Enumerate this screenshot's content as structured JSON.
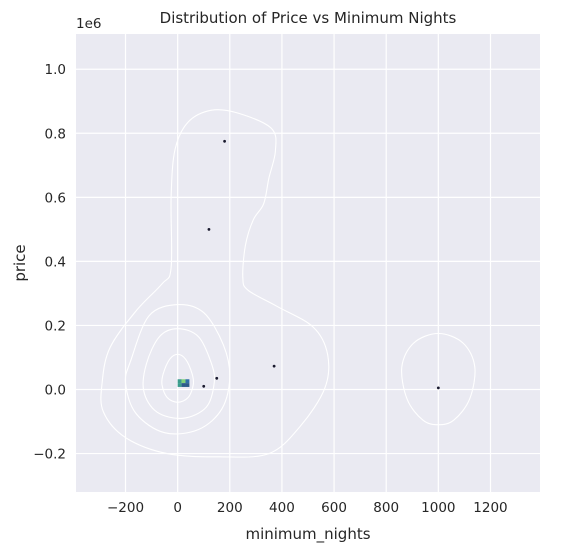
{
  "chart_data": {
    "type": "scatter",
    "title": "Distribution of Price vs Minimum Nights",
    "xlabel": "minimum_nights",
    "ylabel": "price",
    "y_offset_label": "1e6",
    "xlim": [
      -390,
      1390
    ],
    "ylim": [
      -320000,
      1110000
    ],
    "xticks": [
      -200,
      0,
      200,
      400,
      600,
      800,
      1000,
      1200
    ],
    "xtick_labels": [
      "−200",
      "0",
      "200",
      "400",
      "600",
      "800",
      "1000",
      "1200"
    ],
    "yticks": [
      -200000,
      0,
      200000,
      400000,
      600000,
      800000,
      1000000
    ],
    "ytick_labels": [
      "−0.2",
      "0.0",
      "0.2",
      "0.4",
      "0.6",
      "0.8",
      "1.0"
    ],
    "grid": true,
    "colors": {
      "background": "#eaeaf2",
      "grid": "#ffffff",
      "points": "#1a1a2e",
      "contour": "#ffffff",
      "hist_dark": "#2b5c8a",
      "hist_teal": "#3a9c8c",
      "hist_green": "#7fd17a",
      "hist_blue": "#2f6fa8"
    },
    "points": [
      {
        "x": 180,
        "y": 775000
      },
      {
        "x": 120,
        "y": 500000
      },
      {
        "x": 370,
        "y": 73000
      },
      {
        "x": 150,
        "y": 35000
      },
      {
        "x": 100,
        "y": 10000
      },
      {
        "x": 1000,
        "y": 5000
      }
    ],
    "hist2d_bins": [
      {
        "x0": 0,
        "x1": 15,
        "y0": 20000,
        "y1": 32000,
        "level": "teal"
      },
      {
        "x0": 15,
        "x1": 30,
        "y0": 20000,
        "y1": 32000,
        "level": "green"
      },
      {
        "x0": 0,
        "x1": 15,
        "y0": 8000,
        "y1": 20000,
        "level": "teal"
      },
      {
        "x0": 15,
        "x1": 30,
        "y0": 8000,
        "y1": 20000,
        "level": "dark"
      },
      {
        "x0": 30,
        "x1": 45,
        "y0": 20000,
        "y1": 32000,
        "level": "blue"
      },
      {
        "x0": 30,
        "x1": 45,
        "y0": 8000,
        "y1": 20000,
        "level": "dark"
      }
    ],
    "kde_contours": [
      {
        "group": "main",
        "points": [
          [
            -55,
            50000
          ],
          [
            -30,
            95000
          ],
          [
            0,
            110000
          ],
          [
            30,
            95000
          ],
          [
            55,
            50000
          ],
          [
            60,
            15000
          ],
          [
            40,
            -25000
          ],
          [
            0,
            -40000
          ],
          [
            -40,
            -25000
          ],
          [
            -60,
            15000
          ]
        ]
      },
      {
        "group": "main",
        "points": [
          [
            -120,
            80000
          ],
          [
            -70,
            165000
          ],
          [
            0,
            190000
          ],
          [
            80,
            165000
          ],
          [
            130,
            80000
          ],
          [
            140,
            20000
          ],
          [
            110,
            -55000
          ],
          [
            20,
            -90000
          ],
          [
            -80,
            -70000
          ],
          [
            -130,
            -5000
          ]
        ]
      },
      {
        "group": "main",
        "points": [
          [
            -180,
            90000
          ],
          [
            -110,
            230000
          ],
          [
            0,
            265000
          ],
          [
            100,
            240000
          ],
          [
            175,
            140000
          ],
          [
            200,
            40000
          ],
          [
            170,
            -60000
          ],
          [
            80,
            -125000
          ],
          [
            -50,
            -135000
          ],
          [
            -160,
            -75000
          ],
          [
            -200,
            20000
          ]
        ]
      },
      {
        "group": "main",
        "points": [
          [
            -290,
            20000
          ],
          [
            -260,
            130000
          ],
          [
            -160,
            245000
          ],
          [
            -60,
            330000
          ],
          [
            -25,
            380000
          ],
          [
            -25,
            600000
          ],
          [
            -10,
            750000
          ],
          [
            40,
            835000
          ],
          [
            130,
            872000
          ],
          [
            235,
            862000
          ],
          [
            360,
            815000
          ],
          [
            375,
            745000
          ],
          [
            350,
            660000
          ],
          [
            330,
            580000
          ],
          [
            290,
            530000
          ],
          [
            260,
            450000
          ],
          [
            250,
            350000
          ],
          [
            270,
            310000
          ],
          [
            380,
            260000
          ],
          [
            520,
            195000
          ],
          [
            575,
            110000
          ],
          [
            565,
            5000
          ],
          [
            470,
            -115000
          ],
          [
            350,
            -200000
          ],
          [
            160,
            -210000
          ],
          [
            -40,
            -200000
          ],
          [
            -200,
            -150000
          ],
          [
            -285,
            -70000
          ]
        ]
      },
      {
        "group": "outlier",
        "points": [
          [
            1000,
            175000
          ],
          [
            1095,
            145000
          ],
          [
            1140,
            70000
          ],
          [
            1120,
            -30000
          ],
          [
            1060,
            -95000
          ],
          [
            1000,
            -110000
          ],
          [
            940,
            -95000
          ],
          [
            880,
            -30000
          ],
          [
            860,
            70000
          ],
          [
            905,
            145000
          ]
        ]
      }
    ]
  }
}
